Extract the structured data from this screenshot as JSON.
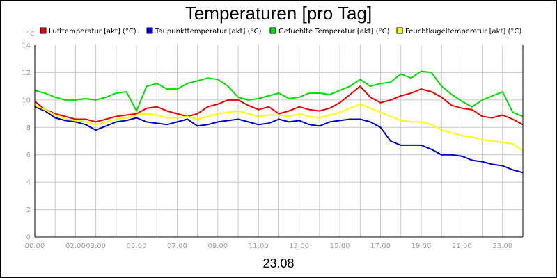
{
  "chart_data": {
    "type": "line",
    "title": "Temperaturen [pro Tag]",
    "xlabel": "23.08",
    "ylabel": "°C",
    "ylim": [
      0,
      14
    ],
    "yticks": [
      0,
      2,
      4,
      6,
      8,
      10,
      12,
      14
    ],
    "xlim": [
      0,
      24
    ],
    "xticks": [
      {
        "h": 0,
        "label": "00:00"
      },
      {
        "h": 2,
        "label": "02:00"
      },
      {
        "h": 3,
        "label": "03:00"
      },
      {
        "h": 5,
        "label": "05:00"
      },
      {
        "h": 7,
        "label": "07:00"
      },
      {
        "h": 9,
        "label": "09:00"
      },
      {
        "h": 11,
        "label": "11:00"
      },
      {
        "h": 13,
        "label": "13:00"
      },
      {
        "h": 15,
        "label": "15:00"
      },
      {
        "h": 17,
        "label": "17:00"
      },
      {
        "h": 19,
        "label": "19:00"
      },
      {
        "h": 21,
        "label": "21:00"
      },
      {
        "h": 23,
        "label": "23:00"
      }
    ],
    "grid": true,
    "legend_position": "top",
    "x": [
      0,
      0.5,
      1,
      1.5,
      2,
      2.5,
      3,
      3.5,
      4,
      4.5,
      5,
      5.5,
      6,
      6.5,
      7,
      7.5,
      8,
      8.5,
      9,
      9.5,
      10,
      10.5,
      11,
      11.5,
      12,
      12.5,
      13,
      13.5,
      14,
      14.5,
      15,
      15.5,
      16,
      16.5,
      17,
      17.5,
      18,
      18.5,
      19,
      19.5,
      20,
      20.5,
      21,
      21.5,
      22,
      22.5,
      23,
      23.5,
      24
    ],
    "series": [
      {
        "name": "Lufttemperatur [akt] (°C)",
        "color": "#ee0000",
        "values": [
          9.9,
          9.3,
          9.0,
          8.8,
          8.6,
          8.6,
          8.4,
          8.6,
          8.8,
          8.9,
          9.0,
          9.4,
          9.5,
          9.2,
          9.0,
          8.8,
          9.0,
          9.5,
          9.7,
          10.0,
          10.0,
          9.6,
          9.3,
          9.5,
          9.0,
          9.2,
          9.5,
          9.3,
          9.2,
          9.4,
          9.8,
          10.4,
          11.0,
          10.2,
          9.8,
          10.0,
          10.3,
          10.5,
          10.8,
          10.6,
          10.2,
          9.6,
          9.4,
          9.3,
          8.8,
          8.7,
          8.9,
          8.6,
          8.2
        ]
      },
      {
        "name": "Taupunkttemperatur [akt] (°C)",
        "color": "#0000cc",
        "values": [
          9.5,
          9.2,
          8.7,
          8.5,
          8.4,
          8.2,
          7.8,
          8.1,
          8.4,
          8.5,
          8.7,
          8.4,
          8.3,
          8.2,
          8.4,
          8.6,
          8.1,
          8.2,
          8.4,
          8.5,
          8.6,
          8.4,
          8.2,
          8.3,
          8.6,
          8.4,
          8.5,
          8.2,
          8.1,
          8.4,
          8.5,
          8.6,
          8.6,
          8.4,
          8.0,
          7.0,
          6.7,
          6.7,
          6.7,
          6.4,
          6.0,
          6.0,
          5.9,
          5.6,
          5.5,
          5.3,
          5.2,
          4.9,
          4.7
        ]
      },
      {
        "name": "Gefuehlte Temperatur [akt] (°C)",
        "color": "#00dd00",
        "values": [
          10.7,
          10.5,
          10.2,
          10.0,
          10.0,
          10.1,
          10.0,
          10.2,
          10.5,
          10.6,
          9.2,
          11.0,
          11.2,
          10.8,
          10.8,
          11.2,
          11.4,
          11.6,
          11.5,
          11.0,
          10.2,
          10.0,
          10.1,
          10.3,
          10.5,
          10.1,
          10.2,
          10.5,
          10.5,
          10.4,
          10.7,
          11.0,
          11.5,
          11.0,
          11.2,
          11.3,
          11.9,
          11.6,
          12.1,
          12.0,
          11.0,
          10.4,
          9.9,
          9.5,
          10.0,
          10.3,
          10.6,
          9.1,
          8.8
        ]
      },
      {
        "name": "Feuchtkugeltemperatur [akt] (°C)",
        "color": "#ffff00",
        "values": [
          9.6,
          9.3,
          8.9,
          8.6,
          8.5,
          8.4,
          8.2,
          8.4,
          8.6,
          8.7,
          8.9,
          9.0,
          8.9,
          8.7,
          8.7,
          8.8,
          8.6,
          8.8,
          9.0,
          9.1,
          9.2,
          9.0,
          8.8,
          8.9,
          8.9,
          8.8,
          9.0,
          8.8,
          8.7,
          8.9,
          9.1,
          9.4,
          9.7,
          9.4,
          9.1,
          8.8,
          8.5,
          8.4,
          8.4,
          8.2,
          7.8,
          7.6,
          7.4,
          7.3,
          7.1,
          7.0,
          6.9,
          6.8,
          6.3
        ]
      }
    ]
  }
}
